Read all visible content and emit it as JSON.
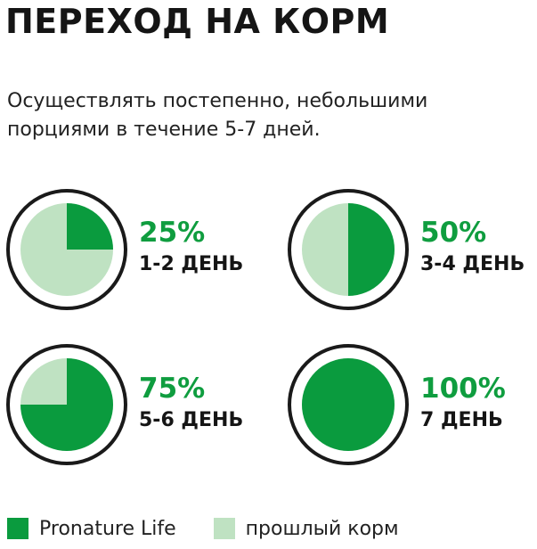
{
  "title": "ПЕРЕХОД НА КОРМ",
  "subtitle": "Осуществлять постепенно, небольшими порциями в течение 5-7 дней.",
  "colors": {
    "new_food": "#0a9b3e",
    "old_food": "#bfe2c2",
    "ring": "#1a1a1a"
  },
  "steps": [
    {
      "percent_label": "25%",
      "fraction": 0.25,
      "day_label": "1-2 ДЕНЬ"
    },
    {
      "percent_label": "50%",
      "fraction": 0.5,
      "day_label": "3-4 ДЕНЬ"
    },
    {
      "percent_label": "75%",
      "fraction": 0.75,
      "day_label": "5-6 ДЕНЬ"
    },
    {
      "percent_label": "100%",
      "fraction": 1.0,
      "day_label": "7 ДЕНЬ"
    }
  ],
  "legend": {
    "new_food_label": "Pronature Life",
    "old_food_label": "прошлый корм"
  }
}
